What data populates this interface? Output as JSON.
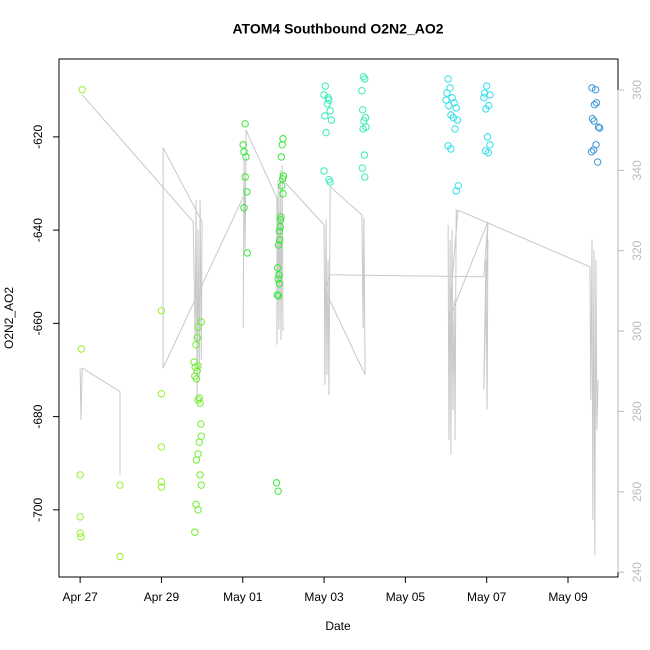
{
  "chart_data": {
    "type": "scatter",
    "title": "ATOM4 Southbound O2N2_AO2",
    "x_label": "Date",
    "y_label": "O2N2_AO2",
    "xlim": [
      -0.52,
      13.23
    ],
    "xticks": [
      {
        "value": 0,
        "label": "Apr 27"
      },
      {
        "value": 2,
        "label": "Apr 29"
      },
      {
        "value": 4,
        "label": "May 01"
      },
      {
        "value": 6,
        "label": "May 03"
      },
      {
        "value": 8,
        "label": "May 05"
      },
      {
        "value": 10,
        "label": "May 07"
      },
      {
        "value": 12,
        "label": "May 09"
      }
    ],
    "ylim": [
      -714.4,
      -603.3
    ],
    "yticks": [
      -700,
      -680,
      -660,
      -640,
      -620
    ],
    "y2lim": [
      238.8,
      367.7
    ],
    "y2ticks": [
      240,
      260,
      280,
      300,
      320,
      340,
      360
    ],
    "y2_color": "#bbbbbb",
    "series": [
      {
        "type": "line",
        "axis": "y2",
        "color": "#c8c8c8",
        "x": [
          0,
          0.02,
          0.05,
          0.98,
          0.98,
          null,
          0.05,
          2.78,
          2.83,
          2.85,
          2.88,
          2.9,
          2.93,
          2.95,
          2.98,
          3.0,
          2.04,
          2.04,
          4.06,
          null,
          4.01,
          4.03,
          4.06,
          4.08,
          4.84,
          4.84,
          4.87,
          4.89,
          4.92,
          4.94,
          4.97,
          4.99,
          5.02,
          null,
          4.99,
          6.0,
          6.02,
          6.05,
          6.07,
          6.1,
          6.12,
          6.15,
          6.93,
          6.96,
          6.98,
          7.01,
          6.02,
          6.15,
          9.93,
          10.03,
          null,
          9.05,
          9.07,
          9.1,
          9.12,
          9.15,
          9.17,
          9.2,
          9.22,
          9.25,
          9.29,
          9.07,
          10.03,
          9.93,
          9.98,
          10.01,
          10.03,
          null,
          9.29,
          12.54,
          12.56,
          12.59,
          12.61,
          12.64,
          12.66,
          12.69,
          12.71,
          12.74
        ],
        "values": [
          290.8,
          277.9,
          290.8,
          284.9,
          264.2,
          null,
          358.8,
          327.2,
          297.8,
          332.6,
          282.9,
          325.2,
          287.9,
          332.6,
          292.8,
          327.2,
          345.6,
          290.8,
          334.4,
          null,
          300.8,
          342.6,
          320.2,
          350.0,
          333.1,
          296.6,
          337.6,
          300.3,
          340.1,
          297.8,
          341.3,
          300.3,
          300.3,
          null,
          337.6,
          326.4,
          286.6,
          327.7,
          289.1,
          317.7,
          284.1,
          335.9,
          328.9,
          300.8,
          328.2,
          289.1,
          310.2,
          314.0,
          313.5,
          327.2,
          null,
          326.4,
          272.9,
          322.7,
          269.2,
          325.2,
          280.4,
          307.8,
          272.9,
          330.1,
          329.7,
          302.8,
          327.2,
          285.4,
          317.7,
          280.4,
          322.7,
          null,
          330.1,
          316.0,
          282.9,
          322.7,
          253.0,
          320.2,
          244.3,
          317.7,
          275.4,
          287.9
        ]
      },
      {
        "color": "#99f02e",
        "x": [
          0.05,
          0.03,
          0.0,
          0.0,
          0.0,
          0.02,
          0.98,
          0.98,
          2.0,
          2.0,
          2.0,
          2.0,
          2.0
        ],
        "values": [
          -609.9,
          -665.5,
          -692.5,
          -701.5,
          -705.0,
          -705.8,
          -694.7,
          -710.0,
          -657.3,
          -675.1,
          -686.5,
          -694.0,
          -695.1
        ]
      },
      {
        "color": "#70ee30",
        "x": [
          2.98,
          2.9,
          2.88,
          2.85,
          2.8,
          2.9,
          2.83,
          2.88,
          2.82,
          2.86,
          2.93,
          2.9,
          2.95,
          2.97,
          2.98,
          2.93,
          2.9,
          2.86,
          2.95,
          2.98,
          2.85,
          2.9,
          2.82
        ],
        "values": [
          -659.7,
          -660.8,
          -663.1,
          -664.6,
          -668.3,
          -669.1,
          -669.4,
          -670.2,
          -671.3,
          -671.9,
          -676.0,
          -676.4,
          -677.1,
          -681.6,
          -684.2,
          -685.5,
          -688.0,
          -689.3,
          -692.5,
          -694.7,
          -698.8,
          -700.0,
          -704.8
        ]
      },
      {
        "color": "#33e833",
        "x": [
          4.06,
          4.01,
          4.03,
          4.08,
          4.06,
          4.1,
          4.03,
          4.11,
          4.99,
          4.97,
          4.95,
          5.0,
          4.98,
          4.96,
          4.99,
          4.94,
          4.93,
          4.92,
          4.9,
          4.91,
          4.88,
          4.86,
          4.89,
          4.87,
          4.9,
          4.85,
          4.88,
          4.83,
          4.87
        ],
        "values": [
          -617.2,
          -621.7,
          -623.2,
          -624.3,
          -628.6,
          -631.8,
          -635.2,
          -644.9,
          -620.4,
          -621.7,
          -624.3,
          -628.4,
          -629.0,
          -630.5,
          -632.2,
          -637.2,
          -637.8,
          -639.3,
          -640.2,
          -642.1,
          -643.2,
          -648.1,
          -649.6,
          -650.5,
          -651.5,
          -653.9,
          -654.1,
          -694.2,
          -696.0
        ]
      },
      {
        "color": "#33eeb8",
        "x": [
          6.03,
          6.0,
          6.1,
          6.12,
          6.08,
          6.15,
          6.02,
          6.18,
          6.05,
          6.0,
          6.12,
          6.15,
          6.97,
          7.0,
          6.93,
          6.95,
          7.02,
          6.98,
          7.03,
          6.96,
          6.99,
          6.94,
          7.0
        ],
        "values": [
          -609.1,
          -611.0,
          -611.6,
          -612.1,
          -612.9,
          -614.4,
          -615.5,
          -616.4,
          -619.1,
          -627.3,
          -629.2,
          -629.7,
          -607.1,
          -607.6,
          -610.1,
          -614.2,
          -615.9,
          -616.6,
          -617.9,
          -618.3,
          -623.9,
          -626.7,
          -628.6
        ]
      },
      {
        "color": "#33e0e8",
        "x": [
          9.05,
          9.1,
          9.02,
          9.15,
          9.0,
          9.2,
          9.07,
          9.25,
          9.12,
          9.18,
          9.28,
          9.22,
          9.05,
          9.12,
          9.3,
          9.25,
          10.0,
          9.95,
          10.08,
          9.93,
          10.05,
          9.98,
          10.02,
          10.08,
          9.97,
          10.04
        ],
        "values": [
          -607.6,
          -609.5,
          -610.6,
          -611.6,
          -612.1,
          -612.7,
          -613.3,
          -613.8,
          -615.3,
          -615.9,
          -616.4,
          -618.3,
          -621.9,
          -622.6,
          -630.5,
          -631.6,
          -609.1,
          -610.6,
          -611.0,
          -611.6,
          -613.3,
          -614.0,
          -620.0,
          -621.7,
          -623.0,
          -623.4
        ]
      },
      {
        "color": "#3a98d8",
        "x": [
          12.59,
          12.68,
          12.7,
          12.65,
          12.6,
          12.64,
          12.75,
          12.78,
          12.69,
          12.63,
          12.58,
          12.73
        ],
        "values": [
          -609.5,
          -609.9,
          -612.7,
          -613.1,
          -616.1,
          -616.6,
          -617.9,
          -618.1,
          -621.7,
          -622.8,
          -623.2,
          -625.4
        ]
      }
    ]
  }
}
